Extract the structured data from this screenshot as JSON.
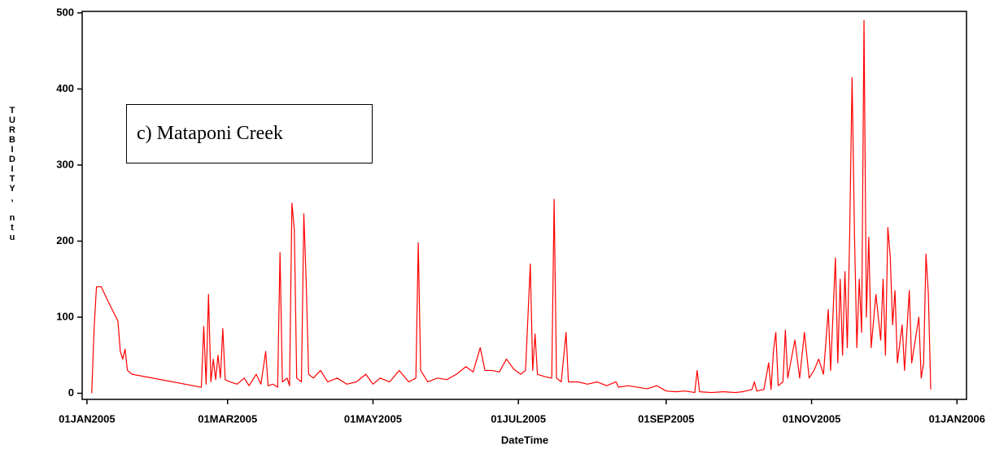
{
  "chart_data": {
    "type": "line",
    "x_label": "DateTime",
    "y_label": "TURBIDITY, ntu",
    "annotation": "c) Mataponi Creek",
    "color": "#ff0000",
    "x": [
      "2005-01-03",
      "2005-01-04",
      "2005-01-05",
      "2005-01-07",
      "2005-01-10",
      "2005-01-14",
      "2005-01-15",
      "2005-01-16",
      "2005-01-17",
      "2005-01-18",
      "2005-01-20",
      "2005-02-18",
      "2005-02-19",
      "2005-02-20",
      "2005-02-21",
      "2005-02-22",
      "2005-02-23",
      "2005-02-24",
      "2005-02-25",
      "2005-02-26",
      "2005-02-27",
      "2005-02-28",
      "2005-03-02",
      "2005-03-05",
      "2005-03-08",
      "2005-03-10",
      "2005-03-13",
      "2005-03-15",
      "2005-03-17",
      "2005-03-18",
      "2005-03-20",
      "2005-03-22",
      "2005-03-23",
      "2005-03-24",
      "2005-03-26",
      "2005-03-27",
      "2005-03-28",
      "2005-03-29",
      "2005-03-30",
      "2005-04-01",
      "2005-04-02",
      "2005-04-03",
      "2005-04-04",
      "2005-04-06",
      "2005-04-09",
      "2005-04-12",
      "2005-04-16",
      "2005-04-20",
      "2005-04-24",
      "2005-04-28",
      "2005-05-01",
      "2005-05-04",
      "2005-05-08",
      "2005-05-12",
      "2005-05-16",
      "2005-05-19",
      "2005-05-20",
      "2005-05-21",
      "2005-05-24",
      "2005-05-28",
      "2005-06-01",
      "2005-06-05",
      "2005-06-09",
      "2005-06-12",
      "2005-06-15",
      "2005-06-17",
      "2005-06-20",
      "2005-06-23",
      "2005-06-26",
      "2005-06-29",
      "2005-07-02",
      "2005-07-04",
      "2005-07-06",
      "2005-07-07",
      "2005-07-08",
      "2005-07-09",
      "2005-07-12",
      "2005-07-15",
      "2005-07-16",
      "2005-07-17",
      "2005-07-19",
      "2005-07-21",
      "2005-07-22",
      "2005-07-26",
      "2005-07-30",
      "2005-08-03",
      "2005-08-07",
      "2005-08-11",
      "2005-08-12",
      "2005-08-16",
      "2005-08-20",
      "2005-08-24",
      "2005-08-28",
      "2005-09-01",
      "2005-09-05",
      "2005-09-09",
      "2005-09-13",
      "2005-09-14",
      "2005-09-15",
      "2005-09-20",
      "2005-09-25",
      "2005-09-30",
      "2005-10-03",
      "2005-10-07",
      "2005-10-08",
      "2005-10-09",
      "2005-10-12",
      "2005-10-14",
      "2005-10-15",
      "2005-10-16",
      "2005-10-17",
      "2005-10-18",
      "2005-10-20",
      "2005-10-21",
      "2005-10-22",
      "2005-10-25",
      "2005-10-27",
      "2005-10-29",
      "2005-10-31",
      "2005-11-02",
      "2005-11-04",
      "2005-11-06",
      "2005-11-08",
      "2005-11-09",
      "2005-11-11",
      "2005-11-12",
      "2005-11-13",
      "2005-11-14",
      "2005-11-15",
      "2005-11-16",
      "2005-11-17",
      "2005-11-18",
      "2005-11-19",
      "2005-11-20",
      "2005-11-21",
      "2005-11-22",
      "2005-11-23",
      "2005-11-24",
      "2005-11-25",
      "2005-11-26",
      "2005-11-28",
      "2005-11-30",
      "2005-12-01",
      "2005-12-02",
      "2005-12-03",
      "2005-12-04",
      "2005-12-05",
      "2005-12-06",
      "2005-12-07",
      "2005-12-09",
      "2005-12-10",
      "2005-12-12",
      "2005-12-13",
      "2005-12-14",
      "2005-12-16",
      "2005-12-17",
      "2005-12-18",
      "2005-12-19",
      "2005-12-20",
      "2005-12-21"
    ],
    "values": [
      0,
      85,
      140,
      140,
      120,
      95,
      55,
      45,
      58,
      30,
      25,
      8,
      88,
      12,
      130,
      15,
      45,
      18,
      50,
      20,
      85,
      18,
      15,
      12,
      20,
      10,
      25,
      12,
      55,
      10,
      12,
      8,
      185,
      15,
      20,
      10,
      250,
      215,
      20,
      15,
      236,
      145,
      25,
      20,
      30,
      15,
      20,
      12,
      15,
      25,
      12,
      20,
      15,
      30,
      15,
      20,
      198,
      30,
      15,
      20,
      18,
      25,
      35,
      28,
      60,
      30,
      30,
      28,
      45,
      32,
      25,
      30,
      170,
      30,
      78,
      25,
      22,
      20,
      255,
      20,
      15,
      80,
      15,
      15,
      12,
      15,
      10,
      15,
      8,
      10,
      8,
      6,
      10,
      3,
      2,
      3,
      1,
      30,
      2,
      1,
      2,
      1,
      2,
      5,
      15,
      3,
      5,
      40,
      5,
      55,
      80,
      10,
      15,
      83,
      20,
      70,
      20,
      80,
      20,
      30,
      45,
      25,
      110,
      30,
      178,
      40,
      150,
      50,
      160,
      60,
      210,
      415,
      210,
      60,
      150,
      80,
      490,
      100,
      205,
      60,
      130,
      70,
      150,
      50,
      218,
      180,
      90,
      135,
      40,
      90,
      30,
      135,
      40,
      60,
      100,
      20,
      40,
      183,
      130,
      5
    ],
    "xlim": [
      "2004-12-30",
      "2006-01-05"
    ],
    "xticks": [
      {
        "value": "2005-01-01",
        "label": "01JAN2005"
      },
      {
        "value": "2005-03-01",
        "label": "01MAR2005"
      },
      {
        "value": "2005-05-01",
        "label": "01MAY2005"
      },
      {
        "value": "2005-07-01",
        "label": "01JUL2005"
      },
      {
        "value": "2005-09-01",
        "label": "01SEP2005"
      },
      {
        "value": "2005-11-01",
        "label": "01NOV2005"
      },
      {
        "value": "2006-01-01",
        "label": "01JAN2006"
      }
    ],
    "ylim": [
      -8,
      502
    ],
    "yticks": [
      0,
      100,
      200,
      300,
      400,
      500
    ]
  }
}
